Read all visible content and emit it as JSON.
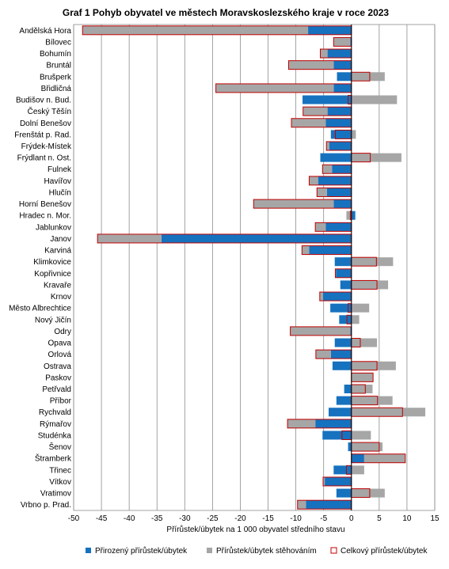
{
  "chart_data": {
    "type": "bar",
    "orientation": "horizontal",
    "title": "Graf 1 Pohyb obyvatel ve městech Moravskoslezského  kraje v roce 2023",
    "xlabel": "Přírůstek/úbytek na 1 000 obyvatel středního stavu",
    "ylabel": "",
    "xlim": [
      -50,
      15
    ],
    "x_ticks": [
      -50,
      -45,
      -40,
      -35,
      -30,
      -25,
      -20,
      -15,
      -10,
      -5,
      0,
      5,
      10,
      15
    ],
    "grid": "vertical",
    "legend_position": "bottom",
    "categories": [
      "Andělská Hora",
      "Bílovec",
      "Bohumín",
      "Bruntál",
      "Brušperk",
      "Břidličná",
      "Budišov n. Bud.",
      "Český Těšín",
      "Dolní Benešov",
      "Frenštát p. Rad.",
      "Frýdek-Místek",
      "Frýdlant n. Ost.",
      "Fulnek",
      "Havířov",
      "Hlučín",
      "Horní Benešov",
      "Hradec n. Mor.",
      "Jablunkov",
      "Janov",
      "Karviná",
      "Klimkovice",
      "Kopřivnice",
      "Kravaře",
      "Krnov",
      "Město Albrechtice",
      "Nový Jičín",
      "Odry",
      "Opava",
      "Orlová",
      "Ostrava",
      "Paskov",
      "Petřvald",
      "Příbor",
      "Rychvald",
      "Rýmařov",
      "Studénka",
      "Šenov",
      "Štramberk",
      "Třinec",
      "Vítkov",
      "Vratimov",
      "Vrbno p. Prad."
    ],
    "series": [
      {
        "name": "Přirozený přírůstek/úbytek",
        "color": "#1672be",
        "style": "bar",
        "values": [
          -7.8,
          -0.2,
          -4.3,
          -3.2,
          -2.6,
          -3.2,
          -8.8,
          -4.3,
          -4.6,
          -3.7,
          -4.0,
          -5.6,
          -3.5,
          -6.0,
          -4.4,
          -3.2,
          0.7,
          -4.6,
          -34.2,
          -7.6,
          -3.0,
          -2.8,
          -2.0,
          -5.1,
          -3.8,
          -2.2,
          -0.2,
          -3.0,
          -3.7,
          -3.4,
          0.0,
          -1.3,
          -2.7,
          -4.1,
          -6.5,
          -5.2,
          -0.6,
          2.3,
          -3.2,
          -4.8,
          -2.7,
          -8.2
        ]
      },
      {
        "name": "Přírůstek/úbytek stěhováním",
        "color": "#a6a6a6",
        "style": "bar",
        "values": [
          -40.6,
          -3.0,
          -1.3,
          -8.1,
          6.0,
          -21.2,
          8.2,
          -4.4,
          -6.2,
          0.8,
          -0.5,
          9.0,
          -1.7,
          -1.6,
          -1.8,
          -14.4,
          -0.9,
          -1.9,
          -11.5,
          -1.3,
          7.5,
          -0.1,
          6.6,
          -0.6,
          3.2,
          1.4,
          -10.8,
          4.6,
          -2.7,
          8.0,
          3.9,
          3.8,
          7.4,
          13.3,
          -5.0,
          3.5,
          5.6,
          7.4,
          2.3,
          -0.3,
          6.0,
          -1.5
        ]
      },
      {
        "name": "Celkový přírůstek/úbytek",
        "color": "#c00000",
        "style": "outline",
        "values": [
          -48.4,
          -3.2,
          -5.6,
          -11.3,
          3.3,
          -24.4,
          -0.6,
          -8.7,
          -10.8,
          -2.9,
          -4.5,
          3.4,
          -5.2,
          -7.6,
          -6.2,
          -17.6,
          -0.2,
          -6.5,
          -45.7,
          -8.9,
          4.5,
          -2.9,
          4.6,
          -5.7,
          -0.6,
          -0.8,
          -11.0,
          1.6,
          -6.4,
          4.6,
          3.9,
          2.5,
          4.7,
          9.2,
          -11.5,
          -1.7,
          5.0,
          9.7,
          -0.9,
          -5.1,
          3.3,
          -9.7
        ]
      }
    ]
  }
}
